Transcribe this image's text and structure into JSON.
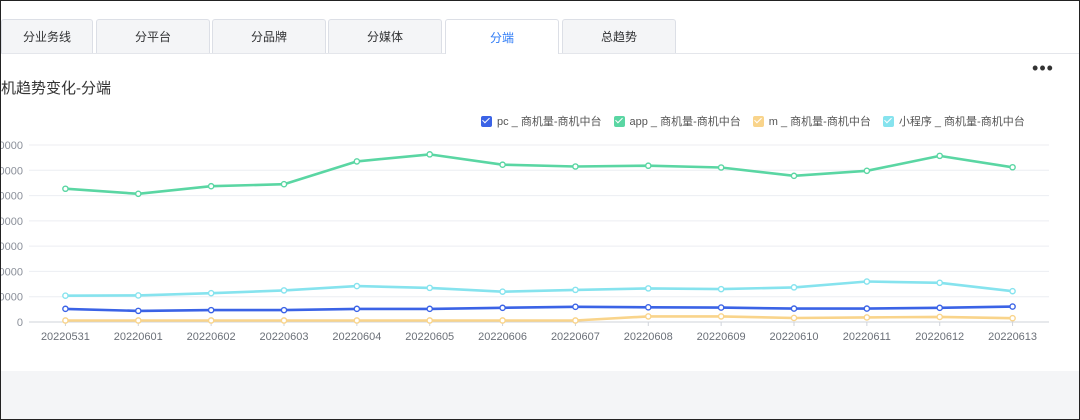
{
  "tabs": [
    {
      "label": "分业务线",
      "active": false
    },
    {
      "label": "分平台",
      "active": false
    },
    {
      "label": "分品牌",
      "active": false
    },
    {
      "label": "分媒体",
      "active": false
    },
    {
      "label": "分端",
      "active": true
    },
    {
      "label": "总趋势",
      "active": false
    }
  ],
  "colors": {
    "active_tab": "#2f7cf6",
    "pc": "#3b63e6",
    "app": "#5ad6a3",
    "m": "#f9d48b",
    "mini": "#86e3ee"
  },
  "chart": {
    "title": "机趋势变化-分端",
    "more_icon": "more-horizontal-icon"
  },
  "chart_data": {
    "type": "line",
    "title": "机趋势变化-分端",
    "x": [
      "20220531",
      "20220601",
      "20220602",
      "20220603",
      "20220604",
      "20220605",
      "20220606",
      "20220607",
      "20220608",
      "20220609",
      "20220610",
      "20220611",
      "20220612",
      "20220613"
    ],
    "y_tick_labels": [
      "0",
      "0000",
      "0000",
      "0000",
      "0000",
      "0000",
      "0000",
      "0000"
    ],
    "ylim": [
      0,
      7
    ],
    "grid": true,
    "legend_position": "top-right",
    "series": [
      {
        "name": "pc _ 商机量-商机中台",
        "color": "#3b63e6",
        "values": [
          0.52,
          0.44,
          0.47,
          0.47,
          0.52,
          0.52,
          0.56,
          0.6,
          0.58,
          0.57,
          0.53,
          0.53,
          0.56,
          0.61
        ]
      },
      {
        "name": "app _ 商机量-商机中台",
        "color": "#5ad6a3",
        "values": [
          5.27,
          5.07,
          5.37,
          5.45,
          6.35,
          6.63,
          6.22,
          6.15,
          6.18,
          6.11,
          5.78,
          5.98,
          6.57,
          6.12
        ]
      },
      {
        "name": "m _ 商机量-商机中台",
        "color": "#f9d48b",
        "values": [
          0.06,
          0.06,
          0.06,
          0.06,
          0.06,
          0.06,
          0.06,
          0.06,
          0.22,
          0.22,
          0.16,
          0.18,
          0.2,
          0.15
        ]
      },
      {
        "name": "小程序 _ 商机量-商机中台",
        "color": "#86e3ee",
        "values": [
          1.04,
          1.05,
          1.14,
          1.25,
          1.42,
          1.35,
          1.2,
          1.27,
          1.33,
          1.3,
          1.37,
          1.6,
          1.55,
          1.22
        ]
      }
    ]
  }
}
